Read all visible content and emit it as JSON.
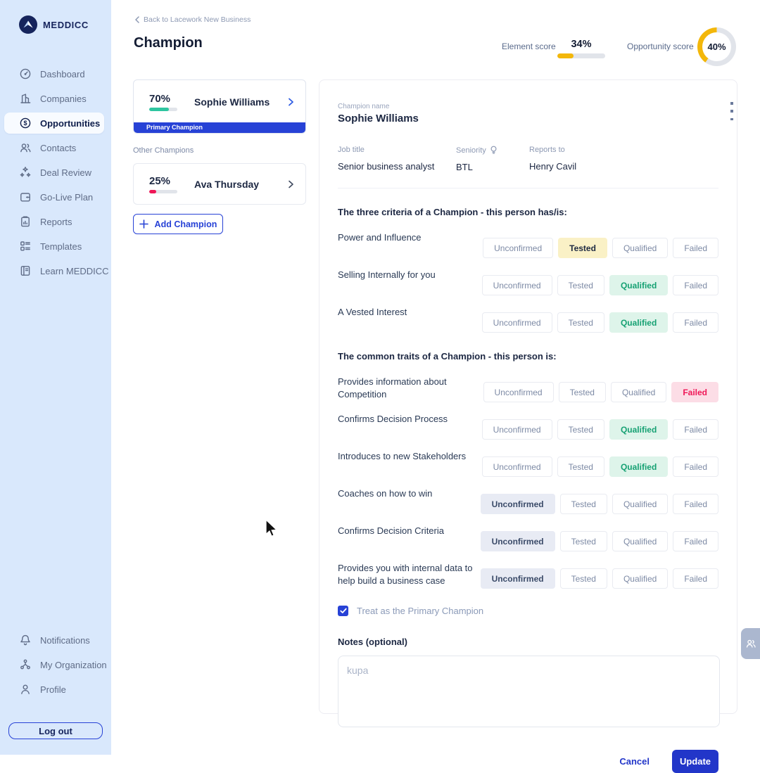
{
  "app": {
    "brand": "MEDDICC"
  },
  "colors": {
    "accent": "#2742d6",
    "yellow": "#f3b70a",
    "teal": "#2ec5a0",
    "red": "#ef1757",
    "tested_bg": "#faf1c6",
    "qualified_bg": "#def4ea",
    "qualified_text": "#16a173",
    "failed_bg": "#fcdde6",
    "failed_text": "#ef1757",
    "unconfirmed_bg": "#e8ebf4"
  },
  "sidebar": {
    "items": [
      {
        "label": "Dashboard",
        "icon": "dashboard-icon",
        "active": false
      },
      {
        "label": "Companies",
        "icon": "companies-icon",
        "active": false
      },
      {
        "label": "Opportunities",
        "icon": "opportunities-icon",
        "active": true
      },
      {
        "label": "Contacts",
        "icon": "contacts-icon",
        "active": false
      },
      {
        "label": "Deal Review",
        "icon": "deal-review-icon",
        "active": false
      },
      {
        "label": "Go-Live Plan",
        "icon": "go-live-plan-icon",
        "active": false
      },
      {
        "label": "Reports",
        "icon": "reports-icon",
        "active": false
      },
      {
        "label": "Templates",
        "icon": "templates-icon",
        "active": false
      },
      {
        "label": "Learn MEDDICC",
        "icon": "learn-meddicc-icon",
        "active": false
      }
    ],
    "footer_items": [
      {
        "label": "Notifications",
        "icon": "notifications-icon",
        "active": false
      },
      {
        "label": "My Organization",
        "icon": "my-organization-icon",
        "active": false
      },
      {
        "label": "Profile",
        "icon": "profile-icon",
        "active": false
      }
    ],
    "logout_label": "Log out"
  },
  "header": {
    "back_label": "Back to Lacework New Business",
    "title": "Champion",
    "element_score_label": "Element score",
    "element_score_value": "34%",
    "element_score_percent": 34,
    "opportunity_score_label": "Opportunity score",
    "opportunity_score_value": "40%",
    "opportunity_score_percent": 40
  },
  "champion_list": {
    "primary": {
      "percent": "70%",
      "progress": 70,
      "name": "Sophie Williams",
      "badge": "Primary Champion"
    },
    "other_label": "Other Champions",
    "others": [
      {
        "percent": "25%",
        "progress": 25,
        "name": "Ava Thursday"
      }
    ],
    "add_label": "Add Champion"
  },
  "detail": {
    "name_label": "Champion name",
    "name": "Sophie Williams",
    "fields": [
      {
        "label": "Job title",
        "value": "Senior business analyst"
      },
      {
        "label": "Seniority",
        "value": "BTL",
        "icon": "seniority-hint-icon"
      },
      {
        "label": "Reports to",
        "value": "Henry Cavil"
      }
    ],
    "statuses": [
      "Unconfirmed",
      "Tested",
      "Qualified",
      "Failed"
    ],
    "sections": [
      {
        "heading": "The three criteria of a Champion - this person has/is:",
        "rows": [
          {
            "label": "Power and Influence",
            "status": "Tested"
          },
          {
            "label": "Selling Internally for you",
            "status": "Qualified"
          },
          {
            "label": "A Vested Interest",
            "status": "Qualified"
          }
        ]
      },
      {
        "heading": "The common traits of a Champion - this person is:",
        "rows": [
          {
            "label": "Provides information about Competition",
            "status": "Failed"
          },
          {
            "label": "Confirms Decision Process",
            "status": "Qualified"
          },
          {
            "label": "Introduces to new Stakeholders",
            "status": "Qualified"
          },
          {
            "label": "Coaches on how to win",
            "status": "Unconfirmed"
          },
          {
            "label": "Confirms Decision Criteria",
            "status": "Unconfirmed"
          },
          {
            "label": "Provides you with internal data to help build a business case",
            "status": "Unconfirmed"
          }
        ]
      }
    ],
    "primary_checkbox_label": "Treat as the Primary Champion",
    "primary_checkbox_checked": true,
    "notes_label": "Notes (optional)",
    "notes_placeholder": "kupa",
    "cancel_label": "Cancel",
    "update_label": "Update"
  }
}
